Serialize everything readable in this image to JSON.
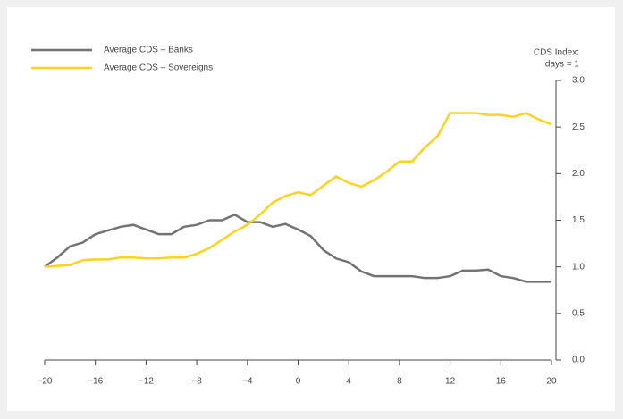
{
  "chart_data": {
    "type": "line",
    "ylabel": [
      "CDS Index:",
      "days = 1"
    ],
    "x": [
      -20,
      -19,
      -18,
      -17,
      -16,
      -15,
      -14,
      -13,
      -12,
      -11,
      -10,
      -9,
      -8,
      -7,
      -6,
      -5,
      -4,
      -3,
      -2,
      -1,
      0,
      1,
      2,
      3,
      4,
      5,
      6,
      7,
      8,
      9,
      10,
      11,
      12,
      13,
      14,
      15,
      16,
      17,
      18,
      19,
      20
    ],
    "series": [
      {
        "name": "Average CDS – Banks",
        "color": "#737373",
        "values": [
          1.0,
          1.1,
          1.22,
          1.26,
          1.35,
          1.39,
          1.43,
          1.45,
          1.4,
          1.35,
          1.35,
          1.43,
          1.45,
          1.5,
          1.5,
          1.56,
          1.48,
          1.48,
          1.43,
          1.46,
          1.4,
          1.33,
          1.18,
          1.09,
          1.05,
          0.95,
          0.9,
          0.9,
          0.9,
          0.9,
          0.88,
          0.88,
          0.9,
          0.96,
          0.96,
          0.97,
          0.9,
          0.88,
          0.84,
          0.84,
          0.84
        ]
      },
      {
        "name": "Average CDS – Sovereigns",
        "color": "#ffd21f",
        "values": [
          1.0,
          1.01,
          1.02,
          1.07,
          1.08,
          1.08,
          1.1,
          1.1,
          1.09,
          1.09,
          1.1,
          1.1,
          1.14,
          1.2,
          1.29,
          1.38,
          1.45,
          1.56,
          1.69,
          1.76,
          1.8,
          1.77,
          1.87,
          1.97,
          1.9,
          1.86,
          1.93,
          2.02,
          2.13,
          2.13,
          2.28,
          2.4,
          2.65,
          2.65,
          2.65,
          2.63,
          2.63,
          2.61,
          2.65,
          2.58,
          2.53
        ]
      }
    ],
    "xlim": [
      -20,
      20
    ],
    "xticks": [
      {
        "value": -20,
        "label": "−20"
      },
      {
        "value": -16,
        "label": "−16"
      },
      {
        "value": -12,
        "label": "−12"
      },
      {
        "value": -8,
        "label": "−8"
      },
      {
        "value": -4,
        "label": "−4"
      },
      0,
      4,
      8,
      12,
      16,
      20
    ],
    "ylim": [
      0,
      3
    ],
    "yticks": [
      {
        "value": 0,
        "label": "0.0"
      },
      0.5,
      {
        "value": 1,
        "label": "1.0"
      },
      1.5,
      {
        "value": 2,
        "label": "2.0"
      },
      2.5,
      {
        "value": 3,
        "label": "3.0"
      }
    ],
    "legend": "upper left"
  }
}
